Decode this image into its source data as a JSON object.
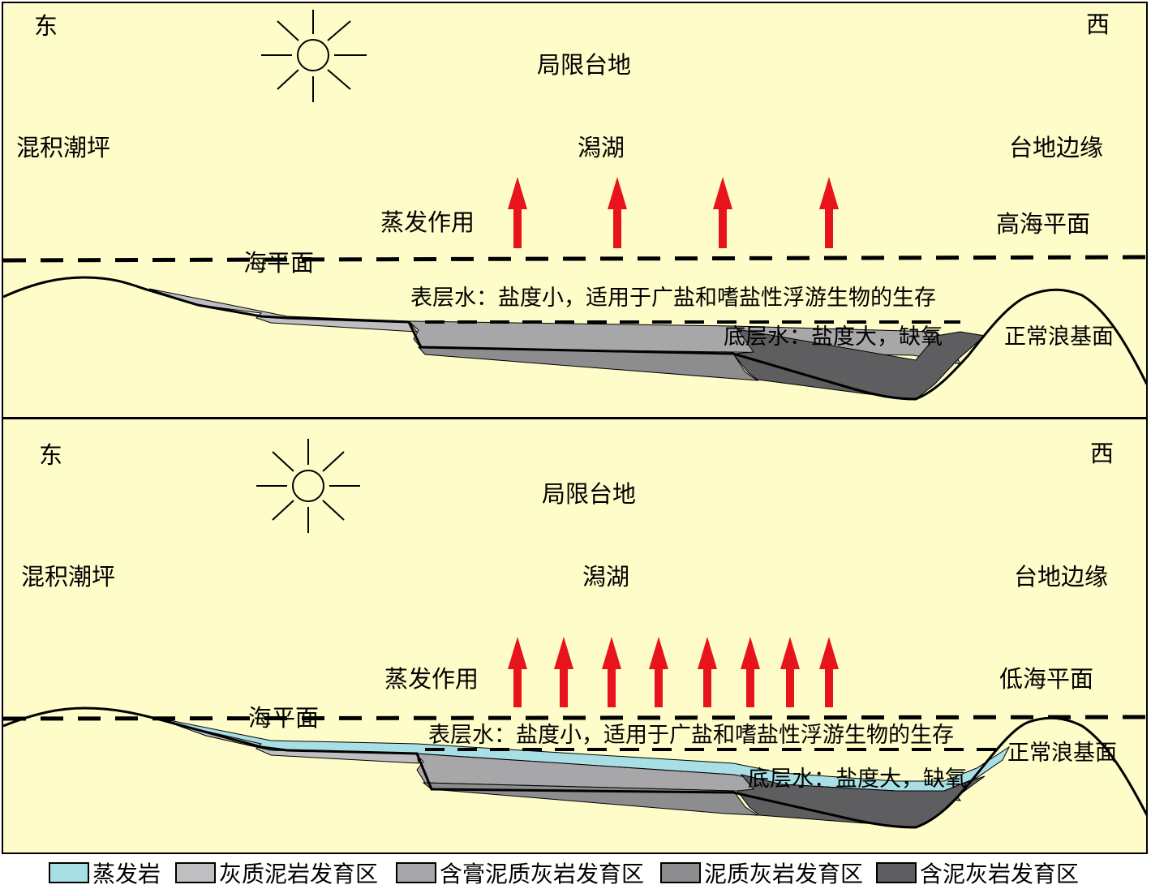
{
  "colors": {
    "background": "#fefcc8",
    "arrow": "#e8141c",
    "evaporite": "#a7dfe5",
    "grey_mudstone": "#bfbfc1",
    "gypsum_marl": "#a7a7a9",
    "marl": "#8d8d8f",
    "muddy_limestone": "#5e5e60"
  },
  "top_panel": {
    "east": "东",
    "west": "西",
    "platform": "局限台地",
    "tidal_flat": "混积潮坪",
    "lagoon": "潟湖",
    "platform_margin": "台地边缘",
    "evaporation": "蒸发作用",
    "sea_level_state": "高海平面",
    "sea_level": "海平面",
    "surface_water": "表层水：盐度小，适用于广盐和嗜盐性浮游生物的生存",
    "bottom_water": "底层水：盐度大，缺氧",
    "wave_base": "正常浪基面",
    "arrow_count": 4
  },
  "bottom_panel": {
    "east": "东",
    "west": "西",
    "platform": "局限台地",
    "tidal_flat": "混积潮坪",
    "lagoon": "潟湖",
    "platform_margin": "台地边缘",
    "evaporation": "蒸发作用",
    "sea_level_state": "低海平面",
    "sea_level": "海平面",
    "surface_water": "表层水：盐度小，适用于广盐和嗜盐性浮游生物的生存",
    "bottom_water": "底层水：盐度大，缺氧",
    "wave_base": "正常浪基面",
    "arrow_count": 8
  },
  "legend": [
    {
      "label": "蒸发岩",
      "color": "#a7dfe5"
    },
    {
      "label": "灰质泥岩发育区",
      "color": "#bfbfc1"
    },
    {
      "label": "含膏泥质灰岩发育区",
      "color": "#a7a7a9"
    },
    {
      "label": "泥质灰岩发育区",
      "color": "#8d8d8f"
    },
    {
      "label": "含泥灰岩发育区",
      "color": "#5e5e60"
    }
  ]
}
